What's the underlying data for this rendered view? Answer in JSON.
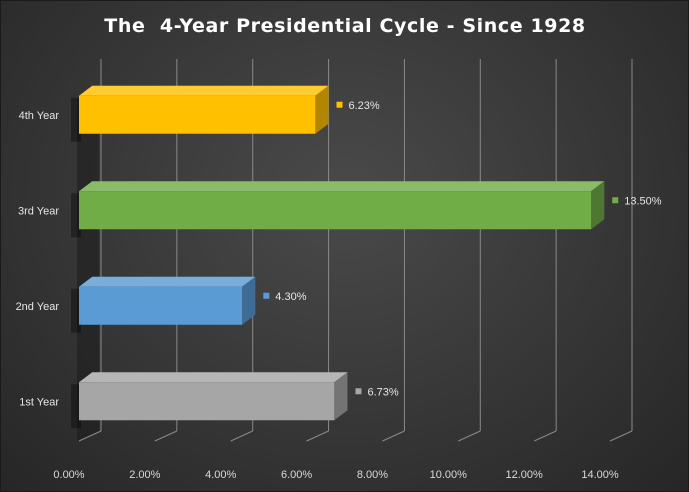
{
  "chart_data": {
    "type": "bar",
    "orientation": "horizontal",
    "title": "The  4-Year Presidential Cycle - Since 1928",
    "categories": [
      "1st Year",
      "2nd Year",
      "3rd Year",
      "4th Year"
    ],
    "values": [
      6.73,
      4.3,
      13.5,
      6.23
    ],
    "data_labels": [
      "6.73%",
      "4.30%",
      "13.50%",
      "6.23%"
    ],
    "colors": [
      "#a6a6a6",
      "#5b9bd5",
      "#70ad47",
      "#ffc000"
    ],
    "xlim": [
      0,
      14
    ],
    "x_ticks": [
      "0.00%",
      "2.00%",
      "4.00%",
      "6.00%",
      "8.00%",
      "10.00%",
      "12.00%",
      "14.00%"
    ],
    "xlabel": "",
    "ylabel": "",
    "grid": true,
    "legend": "none",
    "style": "3d"
  }
}
